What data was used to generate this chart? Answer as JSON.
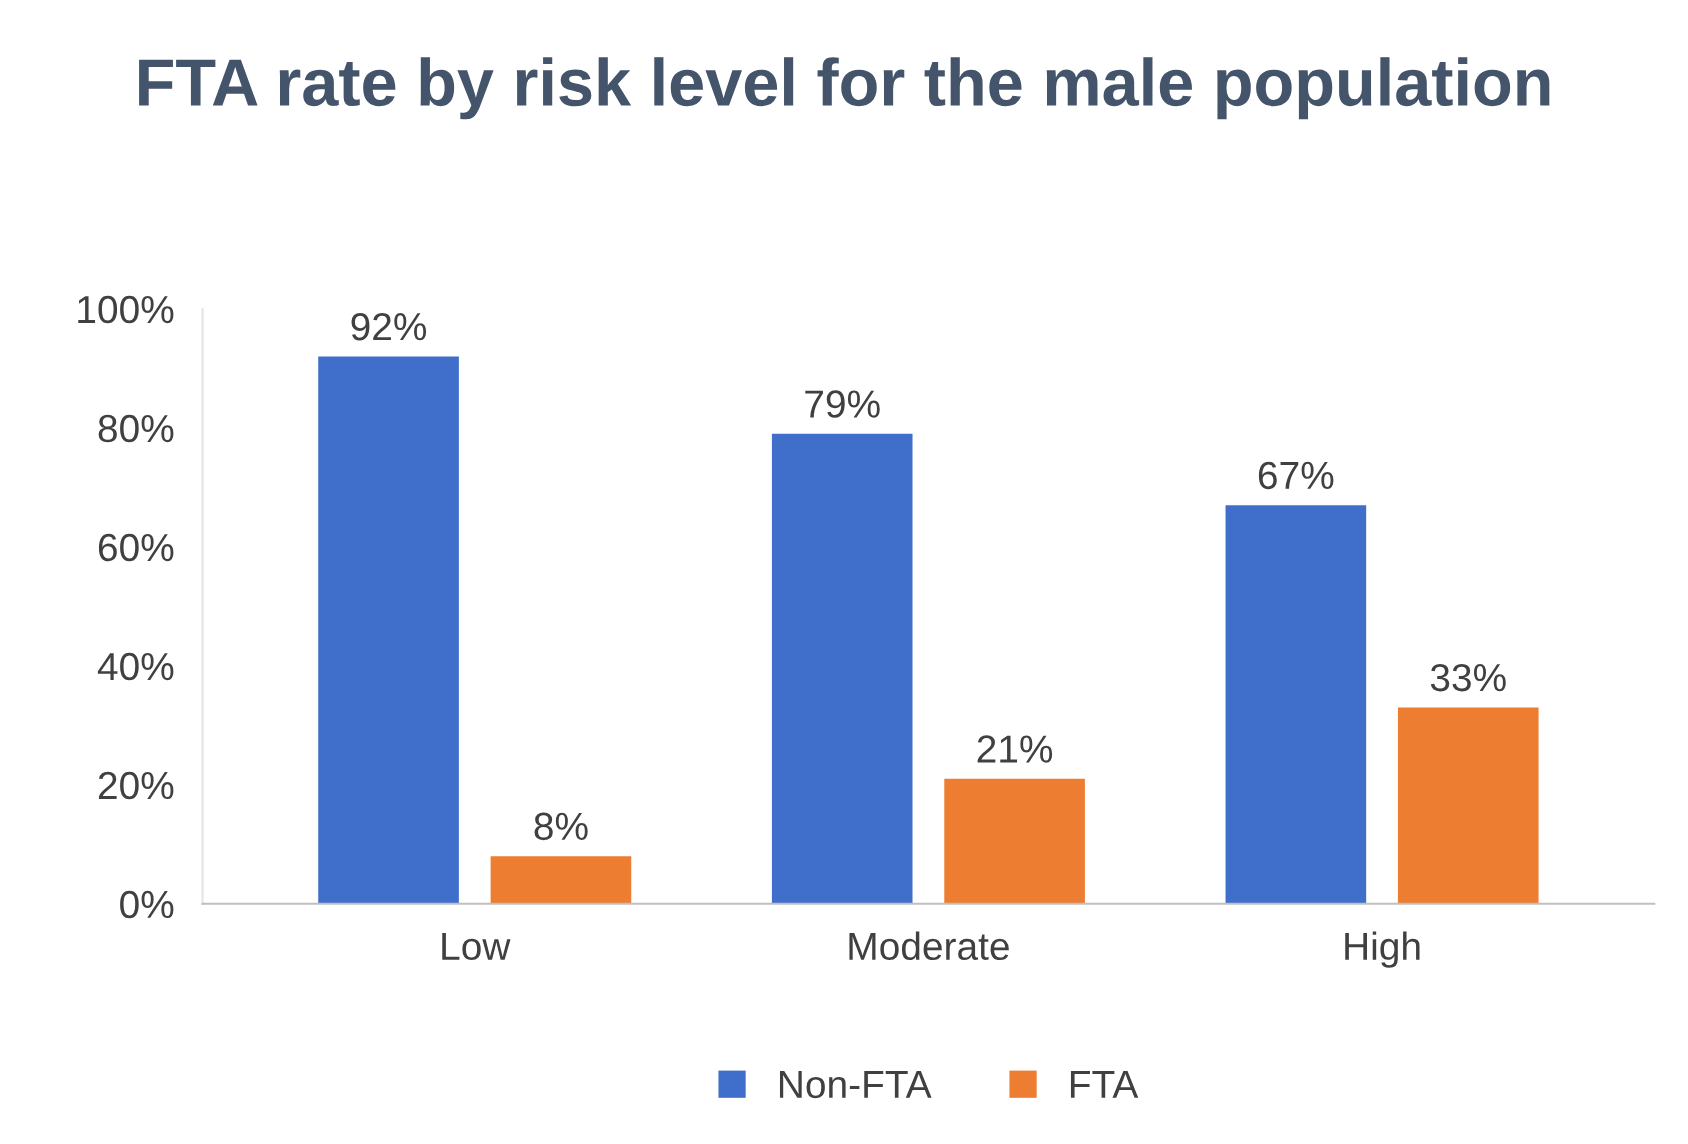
{
  "chart_data": {
    "type": "bar",
    "title": "FTA rate by risk level for the male population",
    "categories": [
      "Low",
      "Moderate",
      "High"
    ],
    "series": [
      {
        "name": "Non-FTA",
        "color": "#3f6fcb",
        "values": [
          92,
          79,
          67
        ],
        "value_labels": [
          "92%",
          "79%",
          "67%"
        ]
      },
      {
        "name": "FTA",
        "color": "#ed7d31",
        "values": [
          8,
          21,
          33
        ],
        "value_labels": [
          "8%",
          "21%",
          "33%"
        ]
      }
    ],
    "ylim": [
      0,
      100
    ],
    "yticks": [
      {
        "value": 0,
        "label": "0%"
      },
      {
        "value": 20,
        "label": "20%"
      },
      {
        "value": 40,
        "label": "40%"
      },
      {
        "value": 60,
        "label": "60%"
      },
      {
        "value": 80,
        "label": "80%"
      },
      {
        "value": 100,
        "label": "100%"
      }
    ],
    "grid": false,
    "legend": "bottom"
  }
}
